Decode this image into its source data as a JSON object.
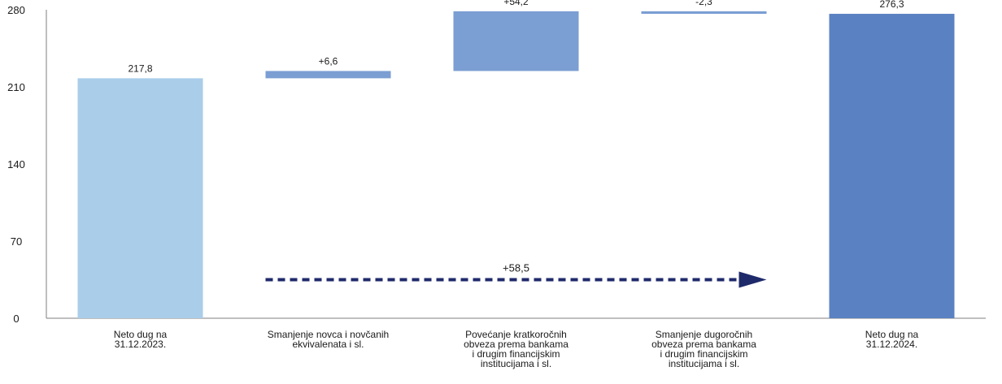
{
  "chart_data": {
    "type": "bar",
    "subtype": "waterfall",
    "title": "",
    "xlabel": "",
    "ylabel": "",
    "ylim": [
      0,
      280
    ],
    "y_ticks": [
      "0",
      "70",
      "140",
      "210",
      "280"
    ],
    "y_tick_values": [
      0,
      70,
      140,
      210,
      280
    ],
    "grid": false,
    "categories": [
      [
        "Neto dug na",
        "31.12.2023."
      ],
      [
        "Smanjenje novca i novčanih",
        "ekvivalenata i sl."
      ],
      [
        "Povećanje  kratkoročnih",
        "obveza prema bankama",
        "i drugim financijskim",
        "institucijama i sl."
      ],
      [
        "Smanjenje dugoročnih",
        "obveza prema bankama",
        "i drugim financijskim",
        "institucijama i sl."
      ],
      [
        "Neto dug na",
        "31.12.2024."
      ]
    ],
    "bars": [
      {
        "kind": "total",
        "start": 0,
        "end": 217.8,
        "label": "217,8",
        "color": "#aacde9"
      },
      {
        "kind": "delta",
        "start": 217.8,
        "end": 224.4,
        "label": "+6,6",
        "color": "#7b9ed3"
      },
      {
        "kind": "delta",
        "start": 224.4,
        "end": 278.6,
        "label": "+54,2",
        "color": "#7b9ed3"
      },
      {
        "kind": "delta",
        "start": 278.6,
        "end": 276.3,
        "label": "-2,3",
        "color": "#7b9ed3"
      },
      {
        "kind": "total",
        "start": 0,
        "end": 276.3,
        "label": "276,3",
        "color": "#5a82c2"
      }
    ],
    "annotation": {
      "label": "+58,5",
      "from_category": 1,
      "to_category": 3,
      "y": 35,
      "color": "#1f2a6b",
      "style": "dotted-arrow"
    }
  }
}
